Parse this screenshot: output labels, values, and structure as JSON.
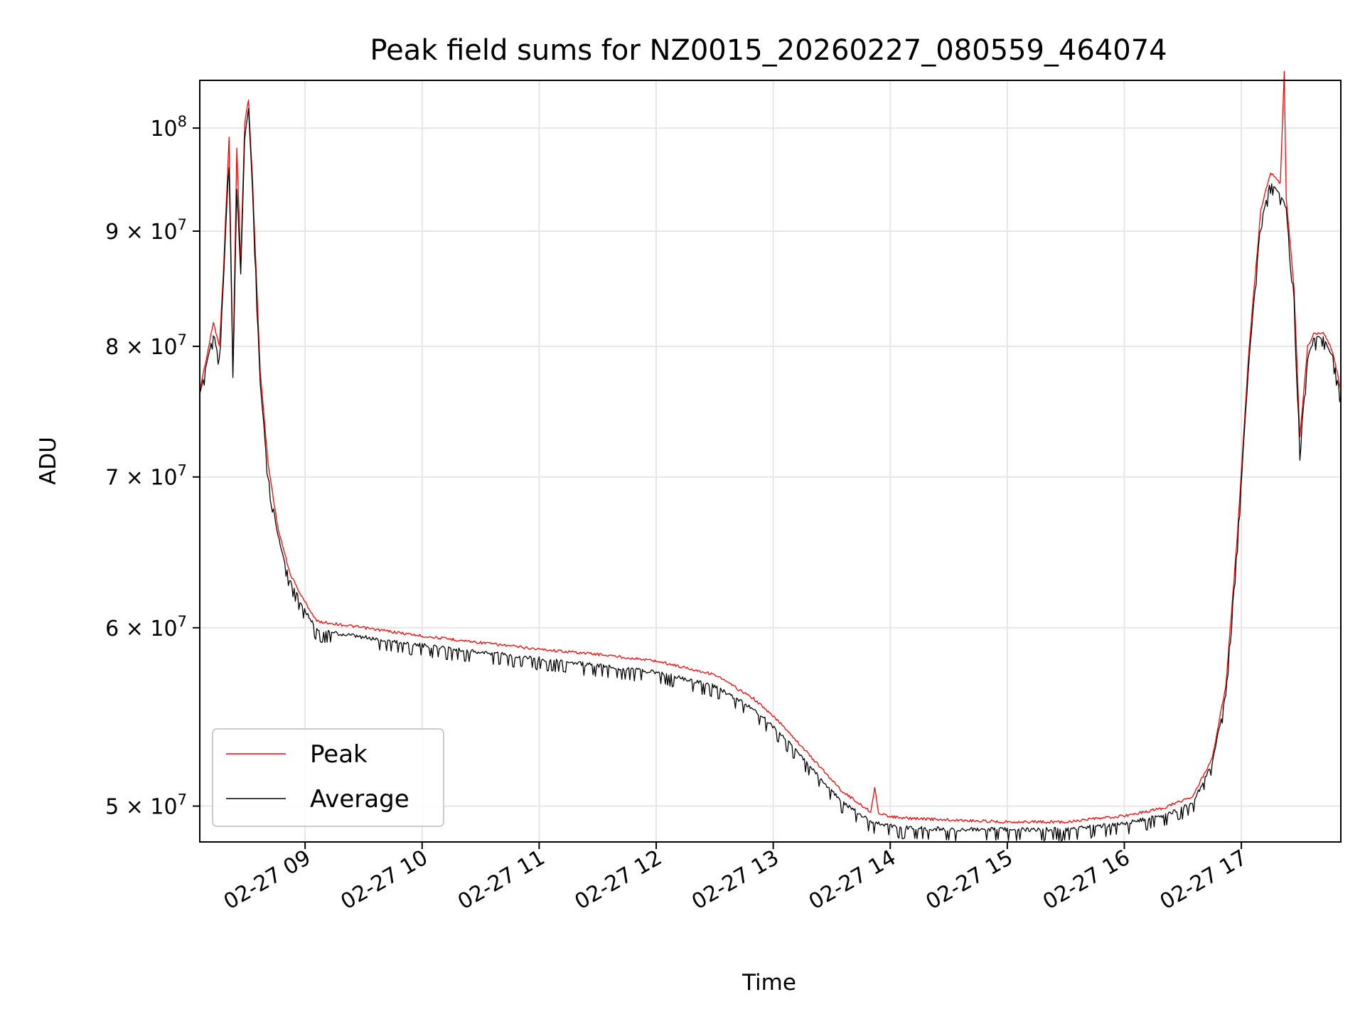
{
  "chart_data": {
    "type": "line",
    "title": "Peak field sums for NZ0015_20260227_080559_464074",
    "xlabel": "Time",
    "ylabel": "ADU",
    "yscale": "log",
    "grid": true,
    "legend_position": "lower-left",
    "xlim": [
      "2026-02-27 08:06",
      "2026-02-27 17:51"
    ],
    "ylim": [
      48200000,
      105000000
    ],
    "x_ticks": [
      {
        "value": "2026-02-27 09:00",
        "label": "02-27 09"
      },
      {
        "value": "2026-02-27 10:00",
        "label": "02-27 10"
      },
      {
        "value": "2026-02-27 11:00",
        "label": "02-27 11"
      },
      {
        "value": "2026-02-27 12:00",
        "label": "02-27 12"
      },
      {
        "value": "2026-02-27 13:00",
        "label": "02-27 13"
      },
      {
        "value": "2026-02-27 14:00",
        "label": "02-27 14"
      },
      {
        "value": "2026-02-27 15:00",
        "label": "02-27 15"
      },
      {
        "value": "2026-02-27 16:00",
        "label": "02-27 16"
      },
      {
        "value": "2026-02-27 17:00",
        "label": "02-27 17"
      }
    ],
    "y_ticks": [
      {
        "value": 50000000,
        "mantissa": "5",
        "exponent": "7"
      },
      {
        "value": 60000000,
        "mantissa": "6",
        "exponent": "7"
      },
      {
        "value": 70000000,
        "mantissa": "7",
        "exponent": "7"
      },
      {
        "value": 80000000,
        "mantissa": "8",
        "exponent": "7"
      },
      {
        "value": 90000000,
        "mantissa": "9",
        "exponent": "7"
      },
      {
        "value": 100000000,
        "mantissa": "",
        "exponent": "8"
      }
    ],
    "y_tick_base": "10",
    "y_tick_times": "×",
    "series": [
      {
        "name": "Peak",
        "color": "#ff0000",
        "points": [
          [
            "2026-02-27 08:06",
            76500000
          ],
          [
            "2026-02-27 08:10",
            79500000
          ],
          [
            "2026-02-27 08:13",
            82000000
          ],
          [
            "2026-02-27 08:16",
            80000000
          ],
          [
            "2026-02-27 08:18",
            86000000
          ],
          [
            "2026-02-27 08:21",
            99000000
          ],
          [
            "2026-02-27 08:23",
            78000000
          ],
          [
            "2026-02-27 08:25",
            98000000
          ],
          [
            "2026-02-27 08:27",
            87000000
          ],
          [
            "2026-02-27 08:29",
            100500000
          ],
          [
            "2026-02-27 08:31",
            103000000
          ],
          [
            "2026-02-27 08:33",
            95000000
          ],
          [
            "2026-02-27 08:37",
            78000000
          ],
          [
            "2026-02-27 08:41",
            71000000
          ],
          [
            "2026-02-27 08:46",
            66500000
          ],
          [
            "2026-02-27 08:52",
            63500000
          ],
          [
            "2026-02-27 08:58",
            62000000
          ],
          [
            "2026-02-27 09:06",
            60400000
          ],
          [
            "2026-02-27 09:30",
            60000000
          ],
          [
            "2026-02-27 10:00",
            59500000
          ],
          [
            "2026-02-27 10:30",
            59100000
          ],
          [
            "2026-02-27 11:00",
            58700000
          ],
          [
            "2026-02-27 11:30",
            58400000
          ],
          [
            "2026-02-27 12:00",
            58000000
          ],
          [
            "2026-02-27 12:30",
            57200000
          ],
          [
            "2026-02-27 12:50",
            55800000
          ],
          [
            "2026-02-27 13:05",
            54300000
          ],
          [
            "2026-02-27 13:20",
            52500000
          ],
          [
            "2026-02-27 13:35",
            50800000
          ],
          [
            "2026-02-27 13:50",
            49700000
          ],
          [
            "2026-02-27 13:52",
            51000000
          ],
          [
            "2026-02-27 13:54",
            49600000
          ],
          [
            "2026-02-27 14:05",
            49400000
          ],
          [
            "2026-02-27 14:30",
            49300000
          ],
          [
            "2026-02-27 15:00",
            49200000
          ],
          [
            "2026-02-27 15:30",
            49200000
          ],
          [
            "2026-02-27 16:00",
            49500000
          ],
          [
            "2026-02-27 16:20",
            49900000
          ],
          [
            "2026-02-27 16:35",
            50500000
          ],
          [
            "2026-02-27 16:45",
            52500000
          ],
          [
            "2026-02-27 16:52",
            56500000
          ],
          [
            "2026-02-27 16:58",
            66000000
          ],
          [
            "2026-02-27 17:04",
            80000000
          ],
          [
            "2026-02-27 17:10",
            92000000
          ],
          [
            "2026-02-27 17:15",
            95500000
          ],
          [
            "2026-02-27 17:20",
            94500000
          ],
          [
            "2026-02-27 17:22",
            106000000
          ],
          [
            "2026-02-27 17:23",
            93000000
          ],
          [
            "2026-02-27 17:27",
            85000000
          ],
          [
            "2026-02-27 17:30",
            73000000
          ],
          [
            "2026-02-27 17:34",
            80000000
          ],
          [
            "2026-02-27 17:37",
            81000000
          ],
          [
            "2026-02-27 17:42",
            81200000
          ],
          [
            "2026-02-27 17:47",
            79500000
          ],
          [
            "2026-02-27 17:51",
            76500000
          ]
        ]
      },
      {
        "name": "Average",
        "color": "#000000",
        "points": [
          [
            "2026-02-27 08:06",
            76000000
          ],
          [
            "2026-02-27 08:10",
            79000000
          ],
          [
            "2026-02-27 08:13",
            81000000
          ],
          [
            "2026-02-27 08:16",
            79000000
          ],
          [
            "2026-02-27 08:18",
            85000000
          ],
          [
            "2026-02-27 08:21",
            97000000
          ],
          [
            "2026-02-27 08:23",
            77500000
          ],
          [
            "2026-02-27 08:25",
            94000000
          ],
          [
            "2026-02-27 08:27",
            86000000
          ],
          [
            "2026-02-27 08:29",
            99000000
          ],
          [
            "2026-02-27 08:31",
            102000000
          ],
          [
            "2026-02-27 08:33",
            94000000
          ],
          [
            "2026-02-27 08:37",
            77000000
          ],
          [
            "2026-02-27 08:41",
            70000000
          ],
          [
            "2026-02-27 08:46",
            66000000
          ],
          [
            "2026-02-27 08:52",
            63000000
          ],
          [
            "2026-02-27 08:58",
            61500000
          ],
          [
            "2026-02-27 09:06",
            59800000
          ],
          [
            "2026-02-27 09:30",
            59400000
          ],
          [
            "2026-02-27 10:00",
            58900000
          ],
          [
            "2026-02-27 10:30",
            58500000
          ],
          [
            "2026-02-27 11:00",
            58100000
          ],
          [
            "2026-02-27 11:30",
            57700000
          ],
          [
            "2026-02-27 12:00",
            57300000
          ],
          [
            "2026-02-27 12:30",
            56500000
          ],
          [
            "2026-02-27 12:50",
            55200000
          ],
          [
            "2026-02-27 13:05",
            53700000
          ],
          [
            "2026-02-27 13:20",
            51900000
          ],
          [
            "2026-02-27 13:35",
            50200000
          ],
          [
            "2026-02-27 13:50",
            49200000
          ],
          [
            "2026-02-27 14:05",
            48900000
          ],
          [
            "2026-02-27 14:30",
            48800000
          ],
          [
            "2026-02-27 15:00",
            48800000
          ],
          [
            "2026-02-27 15:30",
            48800000
          ],
          [
            "2026-02-27 16:00",
            49100000
          ],
          [
            "2026-02-27 16:20",
            49500000
          ],
          [
            "2026-02-27 16:35",
            50100000
          ],
          [
            "2026-02-27 16:45",
            52200000
          ],
          [
            "2026-02-27 16:52",
            56000000
          ],
          [
            "2026-02-27 16:58",
            65500000
          ],
          [
            "2026-02-27 17:04",
            79000000
          ],
          [
            "2026-02-27 17:10",
            91000000
          ],
          [
            "2026-02-27 17:15",
            94500000
          ],
          [
            "2026-02-27 17:20",
            93500000
          ],
          [
            "2026-02-27 17:23",
            92000000
          ],
          [
            "2026-02-27 17:27",
            84000000
          ],
          [
            "2026-02-27 17:30",
            72000000
          ],
          [
            "2026-02-27 17:34",
            79000000
          ],
          [
            "2026-02-27 17:37",
            80500000
          ],
          [
            "2026-02-27 17:42",
            80800000
          ],
          [
            "2026-02-27 17:47",
            79000000
          ],
          [
            "2026-02-27 17:51",
            76000000
          ]
        ]
      }
    ]
  }
}
